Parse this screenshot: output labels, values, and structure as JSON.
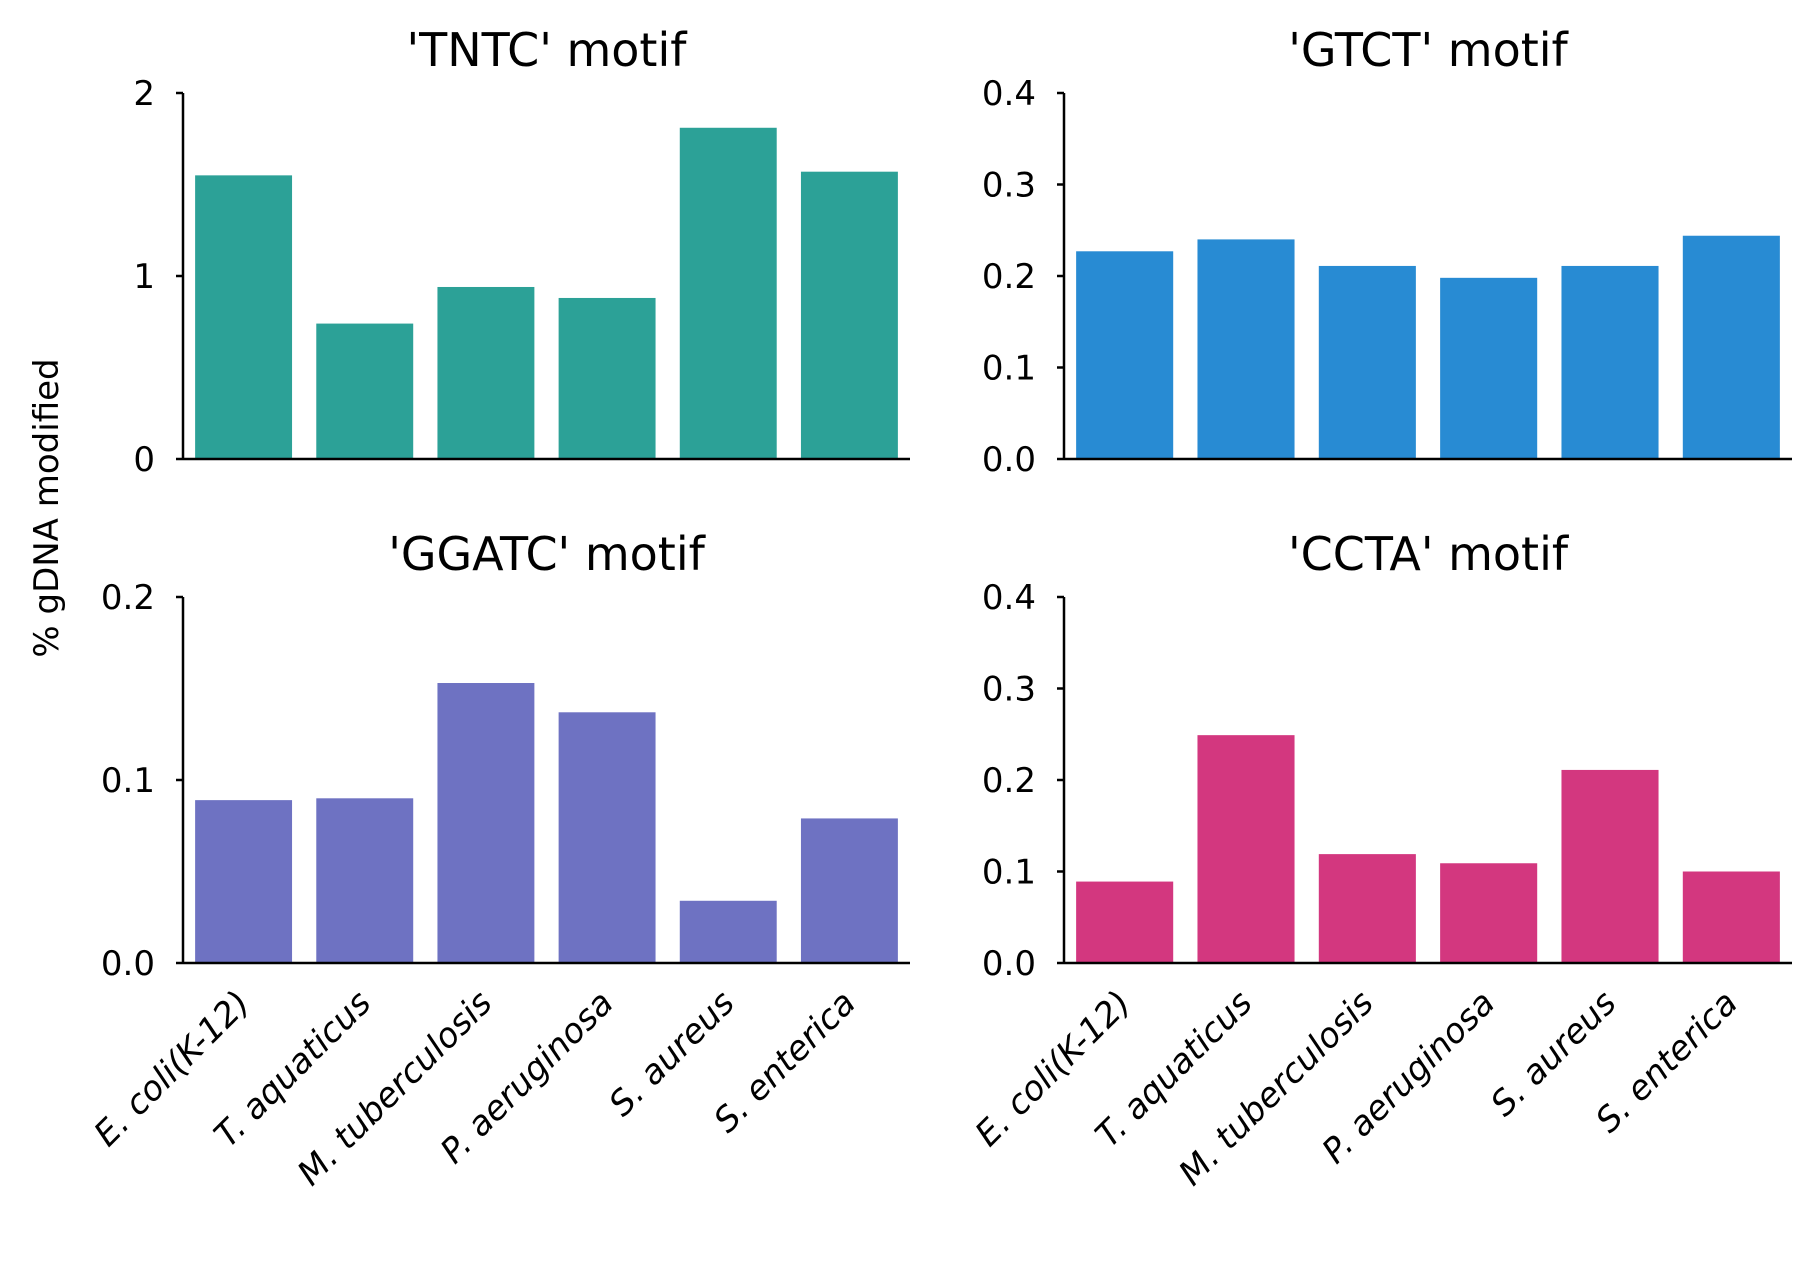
{
  "ylabel": "% gDNA modified",
  "chart_data": [
    {
      "type": "bar",
      "title": "'TNTC' motif",
      "categories": [
        "E. coli(K-12)",
        "T. aquaticus",
        "M. tuberculosis",
        "P. aeruginosa",
        "S. aureus",
        "S. enterica"
      ],
      "values": [
        1.55,
        0.74,
        0.94,
        0.88,
        1.81,
        1.57
      ],
      "ylim": [
        0,
        2
      ],
      "yticks": [
        0,
        1,
        2
      ],
      "ytick_labels": [
        "0",
        "1",
        "2"
      ],
      "color": "#2ca197",
      "show_xticklabels": false
    },
    {
      "type": "bar",
      "title": "'GTCT' motif",
      "categories": [
        "E. coli(K-12)",
        "T. aquaticus",
        "M. tuberculosis",
        "P. aeruginosa",
        "S. aureus",
        "S. enterica"
      ],
      "values": [
        0.227,
        0.24,
        0.211,
        0.198,
        0.211,
        0.244
      ],
      "ylim": [
        0,
        0.4
      ],
      "yticks": [
        0,
        0.1,
        0.2,
        0.3,
        0.4
      ],
      "ytick_labels": [
        "0.0",
        "0.1",
        "0.2",
        "0.3",
        "0.4"
      ],
      "color": "#288bd3",
      "show_xticklabels": false
    },
    {
      "type": "bar",
      "title": "'GGATC' motif",
      "categories": [
        "E. coli(K-12)",
        "T. aquaticus",
        "M. tuberculosis",
        "P. aeruginosa",
        "S. aureus",
        "S. enterica"
      ],
      "values": [
        0.089,
        0.09,
        0.153,
        0.137,
        0.034,
        0.079
      ],
      "ylim": [
        0,
        0.2
      ],
      "yticks": [
        0,
        0.1,
        0.2
      ],
      "ytick_labels": [
        "0.0",
        "0.1",
        "0.2"
      ],
      "color": "#6e72c2",
      "show_xticklabels": true
    },
    {
      "type": "bar",
      "title": "'CCTA' motif",
      "categories": [
        "E. coli(K-12)",
        "T. aquaticus",
        "M. tuberculosis",
        "P. aeruginosa",
        "S. aureus",
        "S. enterica"
      ],
      "values": [
        0.089,
        0.249,
        0.119,
        0.109,
        0.211,
        0.1
      ],
      "ylim": [
        0,
        0.4
      ],
      "yticks": [
        0,
        0.1,
        0.2,
        0.3,
        0.4
      ],
      "ytick_labels": [
        "0.0",
        "0.1",
        "0.2",
        "0.3",
        "0.4"
      ],
      "color": "#d3377f",
      "show_xticklabels": true
    }
  ]
}
